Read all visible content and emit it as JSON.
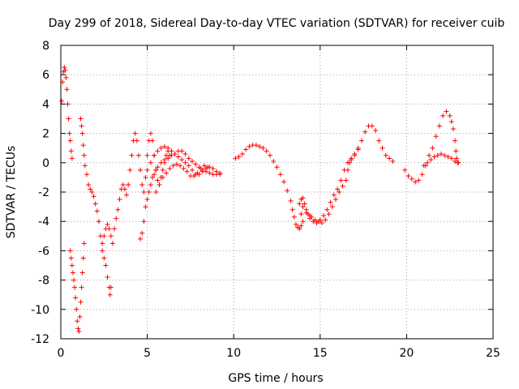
{
  "chart_data": {
    "type": "scatter",
    "title": "Day 299 of 2018, Sidereal Day-to-day VTEC variation (SDTVAR) for receiver cuib",
    "xlabel": "GPS time / hours",
    "ylabel": "SDTVAR / TECUs",
    "xlim": [
      0,
      25
    ],
    "ylim": [
      -12,
      8
    ],
    "xticks": [
      0,
      5,
      10,
      15,
      20,
      25
    ],
    "yticks": [
      -12,
      -10,
      -8,
      -6,
      -4,
      -2,
      0,
      2,
      4,
      6,
      8
    ],
    "xtick_labels": [
      "0",
      "5",
      "10",
      "15",
      "20",
      "25"
    ],
    "ytick_labels": [
      "-12",
      "-10",
      "-8",
      "-6",
      "-4",
      "-2",
      "0",
      "2",
      "4",
      "6",
      "8"
    ],
    "grid": true,
    "marker": "+",
    "color": "#ff0000",
    "series": [
      {
        "name": "s1",
        "points": [
          [
            0.05,
            4.2
          ],
          [
            0.1,
            5.5
          ],
          [
            0.15,
            6.2
          ],
          [
            0.2,
            6.5
          ],
          [
            0.25,
            6.3
          ],
          [
            0.3,
            5.8
          ],
          [
            0.35,
            5.0
          ],
          [
            0.4,
            4.0
          ],
          [
            0.45,
            3.0
          ],
          [
            0.5,
            2.0
          ],
          [
            0.55,
            1.5
          ],
          [
            0.6,
            0.8
          ],
          [
            0.65,
            0.3
          ]
        ]
      },
      {
        "name": "s2",
        "points": [
          [
            0.55,
            -6.0
          ],
          [
            0.6,
            -6.5
          ],
          [
            0.65,
            -7.0
          ],
          [
            0.7,
            -7.5
          ],
          [
            0.75,
            -8.0
          ],
          [
            0.8,
            -8.5
          ],
          [
            0.85,
            -9.2
          ],
          [
            0.9,
            -10.0
          ],
          [
            0.95,
            -10.8
          ],
          [
            1.0,
            -11.3
          ],
          [
            1.05,
            -11.5
          ],
          [
            1.1,
            -10.5
          ],
          [
            1.15,
            -9.5
          ],
          [
            1.2,
            -8.5
          ],
          [
            1.25,
            -7.5
          ],
          [
            1.3,
            -6.5
          ],
          [
            1.35,
            -5.5
          ]
        ]
      },
      {
        "name": "s3",
        "points": [
          [
            1.15,
            3.0
          ],
          [
            1.2,
            2.5
          ],
          [
            1.25,
            2.0
          ],
          [
            1.3,
            1.2
          ],
          [
            1.35,
            0.5
          ],
          [
            1.4,
            -0.2
          ],
          [
            1.5,
            -0.8
          ],
          [
            1.6,
            -1.5
          ],
          [
            1.7,
            -1.8
          ],
          [
            1.8,
            -2.0
          ],
          [
            1.9,
            -2.3
          ],
          [
            2.0,
            -2.8
          ],
          [
            2.1,
            -3.3
          ],
          [
            2.2,
            -4.0
          ],
          [
            2.3,
            -5.0
          ],
          [
            2.4,
            -6.0
          ],
          [
            2.5,
            -6.5
          ],
          [
            2.6,
            -7.0
          ],
          [
            2.7,
            -7.8
          ],
          [
            2.8,
            -8.5
          ],
          [
            2.85,
            -9.0
          ],
          [
            2.9,
            -8.5
          ]
        ]
      },
      {
        "name": "s4",
        "points": [
          [
            2.4,
            -5.5
          ],
          [
            2.5,
            -5.0
          ],
          [
            2.6,
            -4.5
          ],
          [
            2.7,
            -4.2
          ],
          [
            2.8,
            -4.5
          ],
          [
            2.9,
            -5.0
          ],
          [
            3.0,
            -5.5
          ],
          [
            3.1,
            -4.5
          ],
          [
            3.2,
            -3.8
          ],
          [
            3.3,
            -3.2
          ],
          [
            3.4,
            -2.5
          ],
          [
            3.5,
            -1.8
          ],
          [
            3.6,
            -1.5
          ],
          [
            3.7,
            -1.8
          ],
          [
            3.8,
            -2.2
          ],
          [
            3.9,
            -1.5
          ],
          [
            4.0,
            -0.5
          ],
          [
            4.1,
            0.5
          ],
          [
            4.2,
            1.5
          ],
          [
            4.3,
            2.0
          ],
          [
            4.4,
            1.5
          ],
          [
            4.5,
            0.5
          ],
          [
            4.6,
            -0.5
          ],
          [
            4.7,
            -1.5
          ],
          [
            4.8,
            -2.0
          ],
          [
            4.9,
            -1.0
          ],
          [
            5.0,
            0.5
          ],
          [
            5.1,
            1.5
          ],
          [
            5.2,
            2.0
          ],
          [
            5.3,
            1.5
          ],
          [
            5.4,
            0.5
          ],
          [
            5.5,
            -0.5
          ],
          [
            5.6,
            -1.2
          ],
          [
            5.7,
            -1.5
          ],
          [
            5.8,
            -1.0
          ],
          [
            5.9,
            -0.5
          ],
          [
            6.0,
            0.0
          ],
          [
            6.1,
            0.5
          ],
          [
            6.2,
            0.8
          ],
          [
            6.3,
            0.5
          ]
        ]
      },
      {
        "name": "s5",
        "points": [
          [
            4.6,
            -5.2
          ],
          [
            4.7,
            -4.8
          ],
          [
            4.8,
            -4.0
          ],
          [
            4.9,
            -3.0
          ],
          [
            5.0,
            -2.5
          ],
          [
            5.1,
            -2.0
          ],
          [
            5.2,
            -1.5
          ],
          [
            5.3,
            -1.0
          ],
          [
            5.4,
            -0.8
          ],
          [
            5.5,
            -0.5
          ],
          [
            5.6,
            -0.3
          ],
          [
            5.8,
            0.0
          ],
          [
            6.0,
            0.2
          ],
          [
            6.2,
            0.3
          ],
          [
            6.4,
            0.5
          ],
          [
            6.6,
            0.6
          ],
          [
            6.8,
            0.8
          ],
          [
            7.0,
            0.8
          ],
          [
            7.2,
            0.6
          ],
          [
            7.4,
            0.3
          ],
          [
            7.6,
            0.1
          ],
          [
            7.8,
            -0.1
          ],
          [
            8.0,
            -0.3
          ],
          [
            8.2,
            -0.5
          ],
          [
            8.4,
            -0.6
          ],
          [
            8.6,
            -0.7
          ],
          [
            8.8,
            -0.8
          ],
          [
            9.0,
            -0.8
          ],
          [
            9.2,
            -0.7
          ]
        ]
      },
      {
        "name": "s6",
        "points": [
          [
            5.0,
            -0.5
          ],
          [
            5.2,
            0.0
          ],
          [
            5.4,
            0.5
          ],
          [
            5.6,
            0.8
          ],
          [
            5.8,
            1.0
          ],
          [
            6.0,
            1.1
          ],
          [
            6.2,
            1.0
          ],
          [
            6.4,
            0.8
          ],
          [
            6.6,
            0.6
          ],
          [
            6.8,
            0.4
          ],
          [
            7.0,
            0.2
          ],
          [
            7.2,
            0.0
          ],
          [
            7.4,
            -0.2
          ],
          [
            7.6,
            -0.5
          ],
          [
            7.8,
            -0.8
          ],
          [
            8.0,
            -0.8
          ],
          [
            8.2,
            -0.6
          ],
          [
            8.4,
            -0.4
          ],
          [
            8.6,
            -0.3
          ],
          [
            8.8,
            -0.4
          ],
          [
            9.0,
            -0.6
          ],
          [
            9.2,
            -0.8
          ]
        ]
      },
      {
        "name": "s7",
        "points": [
          [
            5.5,
            -2.0
          ],
          [
            5.7,
            -1.5
          ],
          [
            5.9,
            -1.0
          ],
          [
            6.1,
            -0.7
          ],
          [
            6.3,
            -0.4
          ],
          [
            6.5,
            -0.2
          ],
          [
            6.7,
            -0.1
          ],
          [
            6.9,
            -0.2
          ],
          [
            7.1,
            -0.4
          ],
          [
            7.3,
            -0.6
          ],
          [
            7.5,
            -0.9
          ],
          [
            7.7,
            -0.9
          ],
          [
            7.9,
            -0.7
          ],
          [
            8.1,
            -0.4
          ],
          [
            8.3,
            -0.2
          ],
          [
            8.5,
            -0.3
          ]
        ]
      },
      {
        "name": "s8",
        "points": [
          [
            10.1,
            0.3
          ],
          [
            10.3,
            0.4
          ],
          [
            10.5,
            0.6
          ],
          [
            10.7,
            0.9
          ],
          [
            10.9,
            1.1
          ],
          [
            11.1,
            1.2
          ],
          [
            11.3,
            1.2
          ],
          [
            11.5,
            1.1
          ],
          [
            11.7,
            1.0
          ],
          [
            11.9,
            0.8
          ],
          [
            12.1,
            0.5
          ],
          [
            12.3,
            0.1
          ],
          [
            12.5,
            -0.3
          ],
          [
            12.7,
            -0.8
          ],
          [
            12.9,
            -1.3
          ],
          [
            13.1,
            -1.9
          ],
          [
            13.3,
            -2.6
          ],
          [
            13.4,
            -3.2
          ],
          [
            13.5,
            -3.7
          ],
          [
            13.6,
            -4.2
          ],
          [
            13.7,
            -4.4
          ],
          [
            13.8,
            -4.5
          ],
          [
            13.9,
            -4.3
          ],
          [
            14.0,
            -4.0
          ],
          [
            13.9,
            -3.5
          ],
          [
            13.8,
            -2.8
          ],
          [
            13.9,
            -2.5
          ],
          [
            14.0,
            -2.4
          ]
        ]
      },
      {
        "name": "s9",
        "points": [
          [
            14.1,
            -2.8
          ],
          [
            14.2,
            -3.2
          ],
          [
            14.3,
            -3.5
          ],
          [
            14.4,
            -3.6
          ],
          [
            14.5,
            -3.7
          ],
          [
            14.7,
            -3.9
          ],
          [
            14.9,
            -4.0
          ],
          [
            15.1,
            -4.1
          ],
          [
            15.3,
            -3.9
          ],
          [
            15.5,
            -3.5
          ],
          [
            15.7,
            -3.0
          ],
          [
            15.9,
            -2.5
          ],
          [
            16.1,
            -2.0
          ],
          [
            16.3,
            -1.6
          ],
          [
            16.5,
            -1.2
          ],
          [
            16.6,
            -0.5
          ],
          [
            16.7,
            0.0
          ],
          [
            16.8,
            0.3
          ],
          [
            17.0,
            0.6
          ],
          [
            17.2,
            1.0
          ],
          [
            17.4,
            1.5
          ],
          [
            17.6,
            2.1
          ],
          [
            17.8,
            2.5
          ],
          [
            18.0,
            2.5
          ],
          [
            18.2,
            2.2
          ],
          [
            18.4,
            1.5
          ],
          [
            18.6,
            1.0
          ],
          [
            18.8,
            0.5
          ],
          [
            19.0,
            0.3
          ],
          [
            19.2,
            0.1
          ]
        ]
      },
      {
        "name": "s10",
        "points": [
          [
            14.0,
            -3.0
          ],
          [
            14.2,
            -3.4
          ],
          [
            14.4,
            -3.8
          ],
          [
            14.6,
            -4.0
          ],
          [
            14.8,
            -4.1
          ],
          [
            15.0,
            -3.9
          ],
          [
            15.2,
            -3.6
          ],
          [
            15.4,
            -3.2
          ],
          [
            15.6,
            -2.7
          ],
          [
            15.8,
            -2.2
          ],
          [
            16.0,
            -1.8
          ],
          [
            16.2,
            -1.2
          ],
          [
            16.4,
            -0.5
          ],
          [
            16.6,
            0.0
          ],
          [
            16.8,
            0.2
          ],
          [
            17.0,
            0.5
          ],
          [
            17.2,
            0.9
          ]
        ]
      },
      {
        "name": "s11",
        "points": [
          [
            19.9,
            -0.5
          ],
          [
            20.1,
            -0.9
          ],
          [
            20.3,
            -1.1
          ],
          [
            20.5,
            -1.3
          ],
          [
            20.7,
            -1.2
          ],
          [
            20.9,
            -0.8
          ],
          [
            21.1,
            -0.2
          ],
          [
            21.3,
            0.5
          ],
          [
            21.5,
            1.0
          ],
          [
            21.7,
            1.8
          ],
          [
            21.9,
            2.5
          ],
          [
            22.1,
            3.2
          ],
          [
            22.3,
            3.5
          ],
          [
            22.5,
            3.2
          ],
          [
            22.6,
            2.8
          ],
          [
            22.7,
            2.3
          ],
          [
            22.8,
            1.5
          ],
          [
            22.85,
            0.8
          ],
          [
            22.9,
            0.3
          ],
          [
            22.95,
            0.0
          ]
        ]
      },
      {
        "name": "s12",
        "points": [
          [
            21.0,
            -0.2
          ],
          [
            21.2,
            0.0
          ],
          [
            21.4,
            0.2
          ],
          [
            21.6,
            0.4
          ],
          [
            21.8,
            0.5
          ],
          [
            22.0,
            0.6
          ],
          [
            22.2,
            0.5
          ],
          [
            22.4,
            0.4
          ],
          [
            22.6,
            0.3
          ],
          [
            22.8,
            0.1
          ],
          [
            23.0,
            0.0
          ]
        ]
      }
    ]
  }
}
